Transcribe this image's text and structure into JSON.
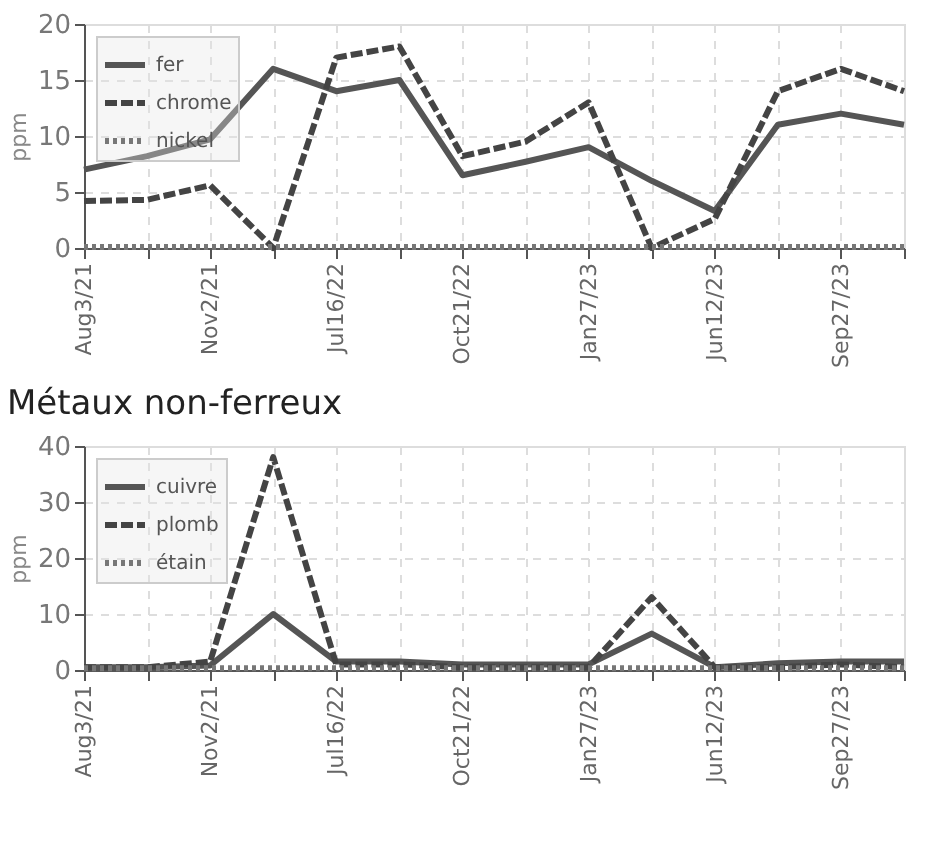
{
  "chart_data": [
    {
      "type": "line",
      "ylabel": "ppm",
      "categories": [
        "Aug3/21",
        null,
        "Nov2/21",
        null,
        "Jul16/22",
        null,
        "Oct21/22",
        null,
        "Jan27/23",
        null,
        "Jun12/23",
        null,
        "Sep27/23",
        null
      ],
      "ylim": [
        0,
        20
      ],
      "yticks": [
        0,
        5,
        10,
        15,
        20
      ],
      "grid": true,
      "legend": "top left",
      "marker": "none",
      "series": [
        {
          "name": "fer",
          "color": "#555555",
          "line_style": "solid",
          "values": [
            7,
            8.2,
            9.7,
            16,
            14,
            15,
            6.5,
            7.7,
            9,
            6,
            3.3,
            11,
            12,
            11
          ]
        },
        {
          "name": "chrome",
          "color": "#444444",
          "line_style": "dashed",
          "values": [
            4.2,
            4.3,
            5.6,
            0,
            17,
            18,
            8.2,
            9.5,
            13,
            0,
            2.6,
            14,
            16,
            14
          ]
        },
        {
          "name": "nickel",
          "color": "#777777",
          "line_style": "dotted",
          "values": [
            0.1,
            0.1,
            0.1,
            0.1,
            0.1,
            0.1,
            0.1,
            0.1,
            0.1,
            0.1,
            0.1,
            0.1,
            0.1,
            0.1
          ]
        }
      ]
    },
    {
      "type": "line",
      "title": "Métaux non-ferreux",
      "ylabel": "ppm",
      "categories": [
        "Aug3/21",
        null,
        "Nov2/21",
        null,
        "Jul16/22",
        null,
        "Oct21/22",
        null,
        "Jan27/23",
        null,
        "Jun12/23",
        null,
        "Sep27/23",
        null
      ],
      "ylim": [
        0,
        40
      ],
      "yticks": [
        0,
        10,
        20,
        30,
        40
      ],
      "grid": true,
      "legend": "top left",
      "marker": "none",
      "series": [
        {
          "name": "cuivre",
          "color": "#555555",
          "line_style": "solid",
          "values": [
            0.5,
            0.5,
            0.8,
            10,
            1.5,
            1.5,
            1,
            1,
            1,
            6.5,
            0.5,
            1.2,
            1.5,
            1.5
          ]
        },
        {
          "name": "plomb",
          "color": "#444444",
          "line_style": "dashed",
          "values": [
            0.5,
            0.5,
            1.5,
            38,
            1,
            1,
            0.5,
            0.5,
            0.5,
            13,
            0.5,
            0.5,
            1,
            0.5
          ]
        },
        {
          "name": "étain",
          "color": "#777777",
          "line_style": "dotted",
          "values": [
            0.3,
            0.3,
            0.3,
            0.3,
            0.3,
            0.3,
            0.3,
            0.3,
            0.3,
            0.3,
            0.3,
            0.3,
            0.3,
            0.3
          ]
        }
      ]
    }
  ]
}
